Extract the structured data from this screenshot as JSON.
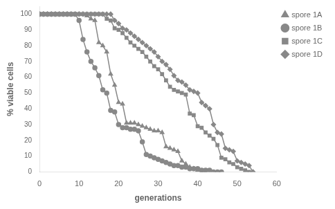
{
  "chart_data": {
    "type": "line",
    "xlabel": "generations",
    "ylabel": "% viable cells",
    "xlim": [
      0,
      60
    ],
    "ylim": [
      0,
      105
    ],
    "xticks": [
      0,
      10,
      20,
      30,
      40,
      50,
      60
    ],
    "yticks": [
      0,
      10,
      20,
      30,
      40,
      50,
      60,
      70,
      80,
      90,
      100
    ],
    "grid": false,
    "legend": "upper right",
    "series": [
      {
        "name": "spore 1A",
        "color": "#888888",
        "marker": "triangle",
        "x": [
          0,
          1,
          2,
          3,
          4,
          5,
          6,
          7,
          8,
          9,
          10,
          11,
          12,
          13,
          14,
          15,
          16,
          17,
          18,
          19,
          20,
          21,
          22,
          23,
          24,
          25,
          26,
          27,
          28,
          29,
          30,
          31,
          32,
          33,
          34,
          35,
          36,
          37,
          38,
          39,
          40,
          41,
          42
        ],
        "values": [
          100,
          100,
          100,
          100,
          100,
          100,
          100,
          100,
          100,
          100,
          100,
          100,
          99,
          97,
          96,
          82,
          80,
          76,
          62,
          55,
          44,
          43,
          31,
          31,
          31,
          30,
          29,
          28,
          27,
          26,
          26,
          25,
          16,
          15,
          14,
          13,
          7,
          5,
          3,
          2,
          1,
          0,
          0
        ]
      },
      {
        "name": "spore 1B",
        "color": "#888888",
        "marker": "circle",
        "x": [
          0,
          1,
          2,
          3,
          4,
          5,
          6,
          7,
          8,
          9,
          10,
          11,
          12,
          13,
          14,
          15,
          16,
          17,
          18,
          19,
          20,
          21,
          22,
          23,
          24,
          25,
          26,
          27,
          28,
          29,
          30,
          31,
          32,
          33,
          34,
          35,
          36,
          37,
          38,
          39,
          40,
          41,
          42,
          43,
          44,
          45,
          46
        ],
        "values": [
          100,
          100,
          100,
          100,
          100,
          100,
          100,
          100,
          100,
          100,
          96,
          84,
          76,
          70,
          66,
          61,
          52,
          50,
          39,
          38,
          30,
          28,
          28,
          27,
          27,
          26,
          19,
          11,
          10,
          9,
          8,
          7,
          6,
          5,
          4,
          4,
          3,
          3,
          2,
          2,
          2,
          1,
          1,
          1,
          0,
          0,
          0
        ]
      },
      {
        "name": "spore 1C",
        "color": "#888888",
        "marker": "square",
        "x": [
          0,
          1,
          2,
          3,
          4,
          5,
          6,
          7,
          8,
          9,
          10,
          11,
          12,
          13,
          14,
          15,
          16,
          17,
          18,
          19,
          20,
          21,
          22,
          23,
          24,
          25,
          26,
          27,
          28,
          29,
          30,
          31,
          32,
          33,
          34,
          35,
          36,
          37,
          38,
          39,
          40,
          41,
          42,
          43,
          44,
          45,
          46,
          47,
          48,
          49,
          50,
          51,
          52,
          53
        ],
        "values": [
          100,
          100,
          100,
          100,
          100,
          100,
          100,
          100,
          100,
          100,
          100,
          100,
          100,
          100,
          100,
          100,
          100,
          97,
          96,
          91,
          90,
          88,
          85,
          82,
          80,
          78,
          76,
          73,
          70,
          67,
          65,
          62,
          58,
          54,
          52,
          51,
          50,
          49,
          37,
          36,
          29,
          28,
          25,
          23,
          21,
          17,
          9,
          8,
          6,
          5,
          3,
          2,
          1,
          0
        ]
      },
      {
        "name": "spore 1D",
        "color": "#888888",
        "marker": "diamond",
        "x": [
          0,
          1,
          2,
          3,
          4,
          5,
          6,
          7,
          8,
          9,
          10,
          11,
          12,
          13,
          14,
          15,
          16,
          17,
          18,
          19,
          20,
          21,
          22,
          23,
          24,
          25,
          26,
          27,
          28,
          29,
          30,
          31,
          32,
          33,
          34,
          35,
          36,
          37,
          38,
          39,
          40,
          41,
          42,
          43,
          44,
          45,
          46,
          47,
          48,
          49,
          50,
          51,
          52,
          53,
          54
        ],
        "values": [
          100,
          100,
          100,
          100,
          100,
          100,
          100,
          100,
          100,
          100,
          100,
          100,
          100,
          100,
          100,
          100,
          100,
          100,
          100,
          96,
          94,
          91,
          90,
          88,
          86,
          84,
          82,
          80,
          78,
          76,
          73,
          70,
          68,
          65,
          61,
          58,
          57,
          55,
          52,
          51,
          50,
          44,
          42,
          40,
          30,
          25,
          24,
          15,
          14,
          13,
          7,
          6,
          5,
          4,
          0
        ]
      }
    ]
  }
}
